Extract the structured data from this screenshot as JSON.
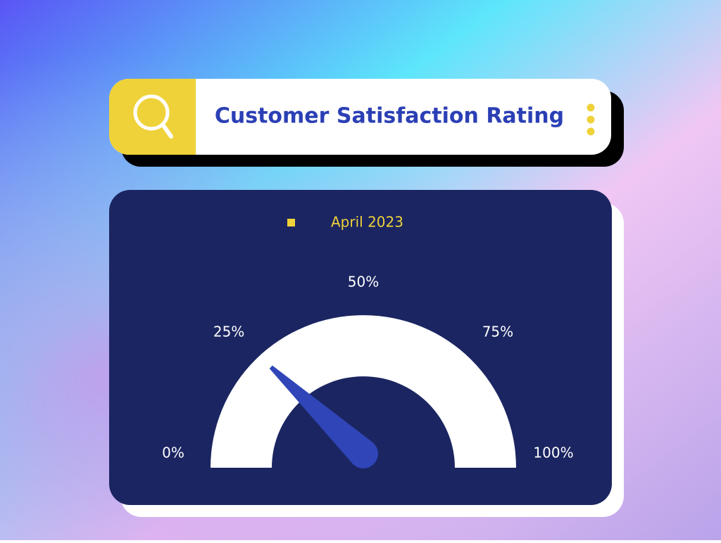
{
  "chart_data": {
    "type": "gauge",
    "title": "Customer Satisfaction Rating",
    "series": [
      {
        "name": "April 2023",
        "color": "#2f45b8",
        "values": [
          24
        ]
      }
    ],
    "ylim": [
      0,
      100
    ],
    "yticks": [
      {
        "value": 0,
        "label": "0%"
      },
      {
        "value": 25,
        "label": "25%"
      },
      {
        "value": 50,
        "label": "50%"
      },
      {
        "value": 75,
        "label": "75%"
      },
      {
        "value": 100,
        "label": "100%"
      }
    ]
  }
}
